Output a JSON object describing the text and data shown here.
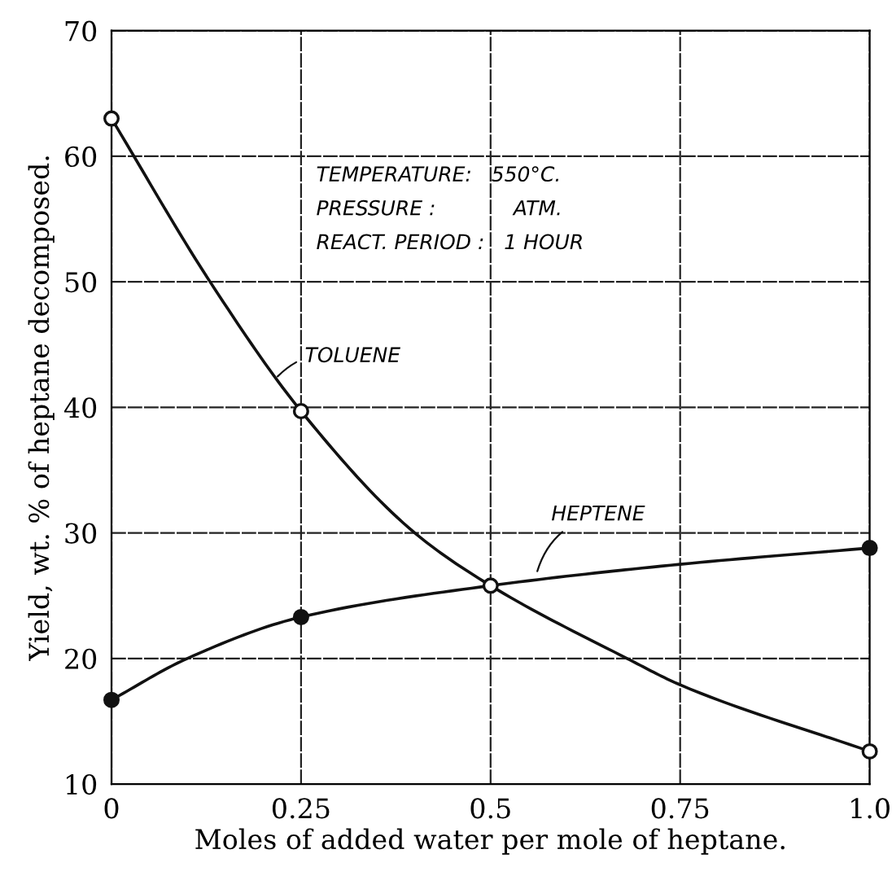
{
  "chart_data": {
    "type": "line",
    "xlabel": "Moles of added water per mole of heptane.",
    "ylabel": "Yield, wt. % of heptane decomposed.",
    "xlim": [
      0,
      1.0
    ],
    "ylim": [
      10,
      70
    ],
    "xticks": [
      0,
      0.25,
      0.5,
      0.75,
      {
        "value": 1.0,
        "label": "1.0"
      }
    ],
    "yticks": [
      10,
      20,
      30,
      40,
      50,
      60,
      70
    ],
    "grid": true,
    "legend": false,
    "line_style": "solid",
    "annotations": [
      "TEMPERATURE:   550°C.",
      "PRESSURE :            ATM.",
      "REACT. PERIOD :   1 HOUR"
    ],
    "series": [
      {
        "name": "TOLUENE",
        "color": "#111111",
        "marker": "none",
        "x": [
          0,
          0.13,
          0.25,
          0.4,
          0.5,
          0.68,
          0.75,
          1.0
        ],
        "values": [
          63,
          50,
          39.7,
          30,
          25.8,
          20,
          17.9,
          12.6
        ]
      },
      {
        "name": "HEPTENE",
        "color": "#111111",
        "marker": "none",
        "x": [
          0,
          0.1,
          0.25,
          0.5,
          0.75,
          1.0
        ],
        "values": [
          16.7,
          20,
          23.3,
          25.8,
          27.5,
          28.8
        ]
      },
      {
        "type": "scatter",
        "color": "#ffffff",
        "marker": "circle",
        "x": [
          0,
          0.25,
          0.5,
          1.0
        ],
        "values": [
          63,
          39.7,
          25.8,
          12.6
        ]
      },
      {
        "type": "scatter",
        "color": "#111111",
        "marker": "circle",
        "x": [
          0,
          0.25,
          0.5,
          1.0
        ],
        "values": [
          16.7,
          23.3,
          null,
          28.8
        ]
      }
    ]
  }
}
